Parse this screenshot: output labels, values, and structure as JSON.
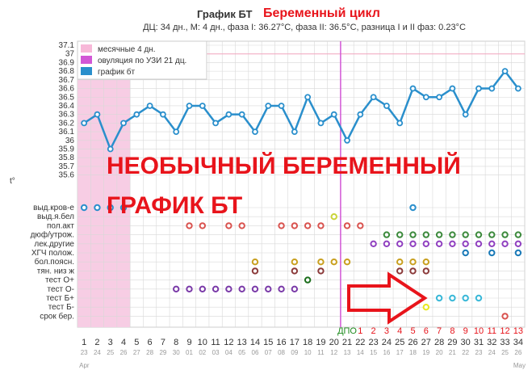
{
  "title": "График БТ",
  "title_red": "Беременный цикл",
  "subtitle": "ДЦ: 34 дн., М: 4 дн., фаза I: 36.27°C, фаза II: 36.5°C, разница I и II фаз: 0.23°C",
  "overlay_text": [
    "НЕОБЫЧНЫЙ БЕРЕМЕННЫЙ",
    "ГРАФИК БТ"
  ],
  "colors": {
    "line": "#2a8fcc",
    "menses_band": "#f7cde4",
    "menses_legend": "#f7b8d8",
    "ovulation": "#d257d6",
    "grid": "#d8d8d8",
    "coverline": "#f3a6c0",
    "arrow": "#e8141b",
    "dlo_text": "#1b8a1b",
    "post_ovulation_day": "#e8141b"
  },
  "chart_data": {
    "type": "line",
    "ylabel": "t°",
    "ylim": [
      35.55,
      37.1
    ],
    "yticks": [
      "37.1",
      "37",
      "36.9",
      "36.8",
      "36.7",
      "36.6",
      "36.5",
      "36.4",
      "36.3",
      "36.2",
      "36.1",
      "36",
      "35.9",
      "35.8",
      "35.7",
      "35.6"
    ],
    "cycle_days": [
      "1",
      "2",
      "3",
      "4",
      "5",
      "6",
      "7",
      "8",
      "9",
      "10",
      "11",
      "12",
      "13",
      "14",
      "15",
      "16",
      "17",
      "18",
      "19",
      "20",
      "21",
      "22",
      "23",
      "24",
      "25",
      "26",
      "27",
      "28",
      "29",
      "30",
      "31",
      "32",
      "33",
      "34"
    ],
    "post_ovulation_days": [
      "ДПО",
      "1",
      "2",
      "3",
      "4",
      "5",
      "6",
      "7",
      "8",
      "9",
      "10",
      "11",
      "12",
      "13"
    ],
    "dates": [
      "23",
      "24",
      "25",
      "26",
      "27",
      "28",
      "29",
      "30",
      "01",
      "02",
      "03",
      "04",
      "05",
      "06",
      "07",
      "08",
      "09",
      "10",
      "11",
      "12",
      "13",
      "14",
      "15",
      "16",
      "17",
      "18",
      "19",
      "20",
      "21",
      "22",
      "23",
      "24",
      "25",
      "26"
    ],
    "months": [
      "Apr",
      "May"
    ],
    "series": [
      {
        "name": "график бт",
        "values": [
          36.2,
          36.3,
          35.9,
          36.2,
          36.3,
          36.4,
          36.3,
          36.1,
          36.4,
          36.4,
          36.2,
          36.3,
          36.3,
          36.1,
          36.4,
          36.4,
          36.1,
          36.5,
          36.2,
          36.3,
          36.0,
          36.3,
          36.5,
          36.4,
          36.2,
          36.6,
          36.5,
          36.5,
          36.6,
          36.3,
          36.6,
          36.6,
          36.8,
          36.6
        ]
      }
    ],
    "menses_days": [
      1,
      4
    ],
    "ovulation_day": 21,
    "coverline": 37.0,
    "legend": [
      "месячные 4 дн.",
      "овуляция по УЗИ 21 дц.",
      "график бт"
    ],
    "legend_position": "top-left",
    "symptom_rows": [
      {
        "label": "выд.кров-е",
        "color": "#2a8fcc",
        "days": [
          1,
          2,
          3,
          4,
          26
        ]
      },
      {
        "label": "выд.я.бел",
        "color": "#c9d43a",
        "days": [
          20
        ]
      },
      {
        "label": "пол.акт",
        "color": "#d9534f",
        "days": [
          9,
          10,
          12,
          13,
          16,
          17,
          18,
          19,
          21,
          22
        ]
      },
      {
        "label": "дюф/утрож.",
        "color": "#3c8a3c",
        "days": [
          24,
          25,
          26,
          27,
          28,
          29,
          30,
          31,
          32,
          33,
          34
        ]
      },
      {
        "label": "лек.другие",
        "color": "#9040c0",
        "days": [
          23,
          24,
          25,
          26,
          27,
          28,
          29,
          30,
          31,
          32,
          33,
          34
        ]
      },
      {
        "label": "ХГЧ полож.",
        "color": "#1a7ab8",
        "days": [
          30,
          32,
          34
        ]
      },
      {
        "label": "бол.поясн.",
        "color": "#c9a020",
        "days": [
          14,
          17,
          19,
          20,
          21,
          25,
          26,
          27
        ]
      },
      {
        "label": "тян. низ ж",
        "color": "#8b3a3a",
        "days": [
          14,
          17,
          19,
          25,
          26,
          27
        ]
      },
      {
        "label": "тест О+",
        "color": "#1b6e1b",
        "days": [
          18
        ]
      },
      {
        "label": "тест О-",
        "color": "#7a3aa8",
        "days": [
          8,
          9,
          10,
          11,
          12,
          13,
          14,
          15,
          16,
          17
        ]
      },
      {
        "label": "тест Б+",
        "color": "#3ab8d8",
        "days": [
          28,
          29,
          30,
          31
        ]
      },
      {
        "label": "тест Б-",
        "color": "#e8e820",
        "days": [
          27
        ]
      },
      {
        "label": "срок бер.",
        "color": "#d9534f",
        "days": [
          33
        ]
      }
    ]
  }
}
